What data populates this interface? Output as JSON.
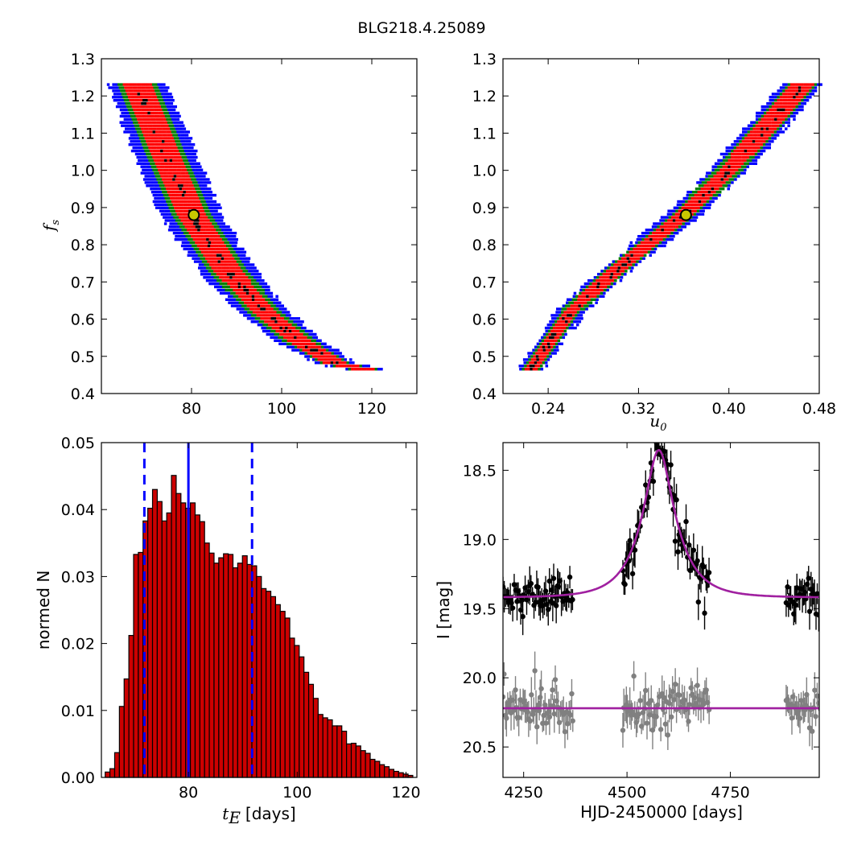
{
  "figure": {
    "title": "BLG218.4.25089"
  },
  "chart_data": [
    {
      "type": "heatmap",
      "panel": "fs-vs-tE",
      "ylabel_main": "f",
      "ylabel_sub": "s",
      "xlabel": "",
      "xlim": [
        60,
        130
      ],
      "ylim": [
        0.4,
        1.3
      ],
      "xticks": [
        "80",
        "100",
        "120"
      ],
      "yticks": [
        "0.4",
        "0.5",
        "0.6",
        "0.7",
        "0.8",
        "0.9",
        "1.0",
        "1.1",
        "1.2",
        "1.3"
      ],
      "levels": [
        {
          "name": "outer",
          "color": "#0000ff"
        },
        {
          "name": "middle",
          "color": "#008000"
        },
        {
          "name": "inner",
          "color": "#ff0000"
        },
        {
          "name": "peak",
          "color": "#000000"
        }
      ],
      "ridge": [
        [
          68,
          1.23
        ],
        [
          74,
          1.05
        ],
        [
          80,
          0.88
        ],
        [
          88,
          0.73
        ],
        [
          96,
          0.62
        ],
        [
          104,
          0.54
        ],
        [
          112,
          0.48
        ],
        [
          118,
          0.465
        ]
      ],
      "best_fit": {
        "x": 80.5,
        "y": 0.88,
        "fill": "#c8c800",
        "stroke": "#000000"
      }
    },
    {
      "type": "heatmap",
      "panel": "fs-vs-u0",
      "ylabel_main": "",
      "xlabel_main": "u",
      "xlabel_sub": "0",
      "xlim": [
        0.2,
        0.48
      ],
      "ylim": [
        0.4,
        1.3
      ],
      "xticks": [
        "0.24",
        "0.32",
        "0.40",
        "0.48"
      ],
      "yticks": [
        "0.4",
        "0.5",
        "0.6",
        "0.7",
        "0.8",
        "0.9",
        "1.0",
        "1.1",
        "1.2",
        "1.3"
      ],
      "levels": [
        {
          "name": "outer",
          "color": "#0000ff"
        },
        {
          "name": "middle",
          "color": "#008000"
        },
        {
          "name": "inner",
          "color": "#ff0000"
        },
        {
          "name": "peak",
          "color": "#000000"
        }
      ],
      "ridge": [
        [
          0.225,
          0.465
        ],
        [
          0.26,
          0.62
        ],
        [
          0.3,
          0.73
        ],
        [
          0.36,
          0.88
        ],
        [
          0.4,
          1.0
        ],
        [
          0.44,
          1.14
        ],
        [
          0.465,
          1.23
        ]
      ],
      "best_fit": {
        "x": 0.362,
        "y": 0.88,
        "fill": "#c8c800",
        "stroke": "#000000"
      }
    },
    {
      "type": "bar",
      "panel": "tE-histogram",
      "xlabel_main": "t",
      "xlabel_sub": "E",
      "xlabel_unit": "[days]",
      "ylabel": "normed N",
      "xlim": [
        64,
        122
      ],
      "ylim": [
        0,
        0.05
      ],
      "xticks": [
        "80",
        "100",
        "120"
      ],
      "yticks": [
        "0.00",
        "0.01",
        "0.02",
        "0.03",
        "0.04",
        "0.05"
      ],
      "bar_color": "#cc0000",
      "bar_edge": "#000000",
      "bin_start": 64.7,
      "bin_width": 0.87,
      "values": [
        0.0008,
        0.0013,
        0.0037,
        0.0106,
        0.0147,
        0.0212,
        0.0333,
        0.0336,
        0.0383,
        0.0402,
        0.043,
        0.0412,
        0.0383,
        0.0395,
        0.0451,
        0.0424,
        0.041,
        0.0402,
        0.041,
        0.0392,
        0.0382,
        0.035,
        0.0335,
        0.032,
        0.0328,
        0.0334,
        0.0333,
        0.0313,
        0.032,
        0.0331,
        0.0318,
        0.0316,
        0.03,
        0.0282,
        0.0278,
        0.027,
        0.0258,
        0.0248,
        0.0238,
        0.0208,
        0.0197,
        0.018,
        0.0157,
        0.0139,
        0.0118,
        0.0094,
        0.0089,
        0.0086,
        0.0077,
        0.0077,
        0.0069,
        0.005,
        0.0051,
        0.0047,
        0.004,
        0.0036,
        0.0027,
        0.0024,
        0.0019,
        0.0016,
        0.0012,
        0.0009,
        0.0007,
        0.0005,
        0.0003,
        0.0002,
        0.0002,
        0.0001
      ],
      "median_line": {
        "x": 80.0,
        "color": "#0000ff",
        "style": "solid"
      },
      "interval_lines": [
        {
          "x": 71.9,
          "color": "#0000ff",
          "style": "dashed"
        },
        {
          "x": 91.7,
          "color": "#0000ff",
          "style": "dashed"
        }
      ]
    },
    {
      "type": "scatter",
      "panel": "light-curve",
      "xlabel": "HJD-2450000 [days]",
      "ylabel": "I [mag]",
      "xlim": [
        4200,
        4965
      ],
      "ylim": [
        20.72,
        18.3
      ],
      "y_inverted": true,
      "xticks": [
        "4250",
        "4500",
        "4750"
      ],
      "yticks": [
        "18.5",
        "19.0",
        "19.5",
        "20.0",
        "20.5"
      ],
      "model": {
        "t0": 4577,
        "tE": 80,
        "u0": 0.362,
        "fs": 0.88,
        "baseline": 19.42,
        "color": "#a020a0"
      },
      "residual_baseline": {
        "value": 20.22,
        "color": "#a020a0"
      },
      "series": [
        {
          "color": "#000000",
          "seasons": [
            [
              4200,
              4370
            ],
            [
              4490,
              4700
            ],
            [
              4885,
              4965
            ]
          ]
        },
        {
          "color": "#808080",
          "seasons": [
            [
              4200,
              4370
            ],
            [
              4490,
              4700
            ],
            [
              4885,
              4965
            ]
          ]
        }
      ]
    }
  ]
}
